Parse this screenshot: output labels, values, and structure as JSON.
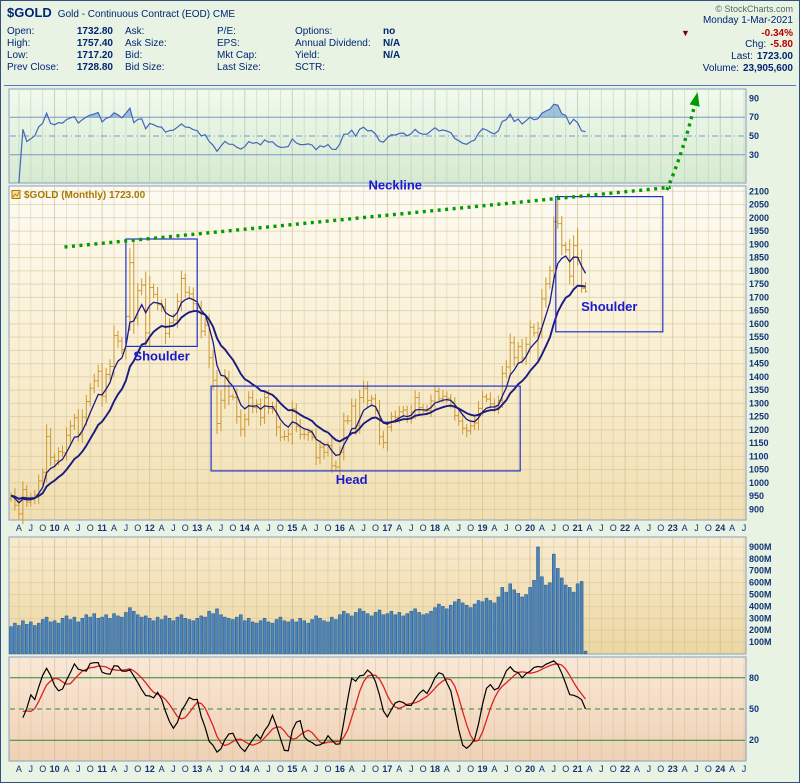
{
  "header": {
    "symbol": "$GOLD",
    "title": "Gold - Continuous Contract (EOD) CME",
    "copyright": "© StockCharts.com",
    "date": "Monday 1-Mar-2021",
    "change_dir": "▼",
    "change_pct": "-0.34%",
    "columns": [
      {
        "rows": [
          {
            "label": "Open:",
            "value": "1732.80"
          },
          {
            "label": "High:",
            "value": "1757.40"
          },
          {
            "label": "Low:",
            "value": "1717.20"
          },
          {
            "label": "Prev Close:",
            "value": "1728.80"
          }
        ]
      },
      {
        "rows": [
          {
            "label": "Ask:",
            "value": ""
          },
          {
            "label": "Ask Size:",
            "value": ""
          },
          {
            "label": "Bid:",
            "value": ""
          },
          {
            "label": "Bid Size:",
            "value": ""
          }
        ]
      },
      {
        "rows": [
          {
            "label": "P/E:",
            "value": ""
          },
          {
            "label": "EPS:",
            "value": ""
          },
          {
            "label": "Mkt Cap:",
            "value": ""
          },
          {
            "label": "Last Size:",
            "value": ""
          }
        ]
      },
      {
        "rows": [
          {
            "label": "Options:",
            "value": "no"
          },
          {
            "label": "Annual Dividend:",
            "value": "N/A"
          },
          {
            "label": "Yield:",
            "value": "N/A"
          },
          {
            "label": "SCTR:",
            "value": ""
          }
        ]
      }
    ],
    "right_rows": [
      {
        "label": "Chg:",
        "value": "-5.80",
        "color": "change"
      },
      {
        "label": "Last:",
        "value": "1723.00",
        "color": "normal"
      },
      {
        "label": "Volume:",
        "value": "23,905,600",
        "color": "normal"
      }
    ]
  },
  "colors": {
    "text_navy": "#113377",
    "change_red": "#bb0000",
    "price_bar": "#cc9933",
    "ma": "#1a1a80",
    "rsi_line": "#4466bb",
    "rsi_fill": "#5f97c8",
    "volume_fill": "#4d83b8",
    "volume_stroke": "#1f5a8c",
    "stoch_k": "#000000",
    "stoch_d": "#dd2222",
    "level_green": "#2e8b2e",
    "level_blue": "#7f96c8",
    "annotation_green": "#009b00",
    "annotation_blue": "#2233cc",
    "label_blue": "#1a1acc",
    "symbol_label_gold": "#aa7700"
  },
  "chart_data": {
    "type": "ohlc",
    "symbol_label": "$GOLD (Monthly) 1723.00",
    "timeframe": "monthly",
    "start_month": "2009-02",
    "last_data_month": "2021-03",
    "axis_end_month": "2024-07",
    "months_total": 186,
    "x_tick_labels": [
      "A",
      "J",
      "O",
      "10",
      "A",
      "J",
      "O",
      "11",
      "A",
      "J",
      "O",
      "12",
      "A",
      "J",
      "O",
      "13",
      "A",
      "J",
      "O",
      "14",
      "A",
      "J",
      "O",
      "15",
      "A",
      "J",
      "O",
      "16",
      "A",
      "J",
      "O",
      "17",
      "A",
      "J",
      "O",
      "18",
      "A",
      "J",
      "O",
      "19",
      "A",
      "J",
      "O",
      "20",
      "A",
      "J",
      "O",
      "21",
      "A",
      "J",
      "O",
      "22",
      "A",
      "J",
      "O",
      "23",
      "A",
      "J",
      "O",
      "24",
      "A",
      "J"
    ],
    "price_panel": {
      "ylim": [
        860,
        2120
      ],
      "scale_labels": [
        2100,
        2050,
        2000,
        1950,
        1900,
        1850,
        1800,
        1750,
        1700,
        1650,
        1600,
        1550,
        1500,
        1450,
        1400,
        1350,
        1300,
        1250,
        1200,
        1150,
        1100,
        1050,
        1000,
        950,
        900
      ],
      "closes": [
        952,
        916,
        883,
        975,
        927,
        939,
        953,
        1008,
        1040,
        1175,
        1096,
        1083,
        1118,
        1114,
        1180,
        1215,
        1245,
        1181,
        1248,
        1307,
        1357,
        1385,
        1421,
        1327,
        1409,
        1439,
        1556,
        1535,
        1502,
        1628,
        1831,
        1622,
        1725,
        1746,
        1566,
        1737,
        1711,
        1672,
        1664,
        1564,
        1604,
        1614,
        1685,
        1771,
        1719,
        1713,
        1676,
        1661,
        1572,
        1595,
        1472,
        1387,
        1224,
        1312,
        1396,
        1327,
        1323,
        1250,
        1202,
        1240,
        1321,
        1284,
        1296,
        1246,
        1322,
        1281,
        1287,
        1211,
        1173,
        1175,
        1184,
        1279,
        1213,
        1183,
        1182,
        1190,
        1172,
        1095,
        1135,
        1115,
        1141,
        1065,
        1060,
        1116,
        1234,
        1234,
        1290,
        1215,
        1322,
        1357,
        1311,
        1317,
        1273,
        1174,
        1152,
        1211,
        1251,
        1247,
        1268,
        1275,
        1242,
        1268,
        1322,
        1284,
        1271,
        1273,
        1309,
        1345,
        1318,
        1327,
        1319,
        1305,
        1254,
        1233,
        1206,
        1196,
        1215,
        1226,
        1281,
        1325,
        1316,
        1298,
        1286,
        1311,
        1413,
        1437,
        1529,
        1472,
        1514,
        1472,
        1523,
        1587,
        1566,
        1583,
        1694,
        1751,
        1800,
        1985,
        1978,
        1895,
        1879,
        1780,
        1895,
        1850,
        1734,
        1723
      ],
      "high_overrides": {
        "31": 1920,
        "137": 2005,
        "138": 2089,
        "143": 1962
      },
      "low_overrides": {
        "82": 1045,
        "133": 1451,
        "144": 1717,
        "145": 1717
      },
      "ma_fast_period": 6,
      "ma_slow_period": 16
    },
    "rsi_panel": {
      "period": 14,
      "scale_labels": [
        90,
        70,
        50,
        30
      ],
      "levels": {
        "solid": [
          70,
          30
        ],
        "dashed": [
          50
        ]
      }
    },
    "volume_panel": {
      "scale_labels": [
        "900M",
        "800M",
        "700M",
        "600M",
        "500M",
        "400M",
        "300M",
        "200M",
        "100M"
      ],
      "values_millions": [
        230,
        260,
        240,
        280,
        250,
        270,
        240,
        260,
        290,
        310,
        270,
        280,
        260,
        300,
        320,
        290,
        310,
        270,
        300,
        330,
        310,
        340,
        300,
        310,
        330,
        300,
        340,
        320,
        310,
        350,
        390,
        360,
        330,
        310,
        320,
        300,
        280,
        310,
        290,
        320,
        300,
        280,
        310,
        330,
        300,
        290,
        280,
        300,
        320,
        310,
        360,
        340,
        380,
        330,
        310,
        300,
        290,
        310,
        330,
        280,
        300,
        270,
        260,
        280,
        300,
        270,
        260,
        290,
        310,
        280,
        270,
        290,
        270,
        300,
        280,
        260,
        290,
        320,
        300,
        280,
        270,
        310,
        290,
        330,
        360,
        340,
        320,
        350,
        380,
        360,
        340,
        320,
        350,
        370,
        330,
        340,
        360,
        330,
        350,
        320,
        340,
        360,
        380,
        350,
        330,
        340,
        360,
        390,
        420,
        400,
        380,
        410,
        440,
        460,
        430,
        410,
        390,
        420,
        450,
        440,
        470,
        450,
        430,
        480,
        560,
        520,
        590,
        540,
        510,
        480,
        500,
        560,
        620,
        900,
        650,
        580,
        600,
        840,
        720,
        640,
        580,
        560,
        520,
        590,
        610,
        24
      ]
    },
    "stoch_panel": {
      "k_period": 14,
      "k_smooth": 3,
      "d_smooth": 5,
      "scale_labels": [
        80,
        50,
        20
      ],
      "levels": {
        "solid": [
          80,
          20
        ],
        "dashed": [
          50
        ]
      }
    },
    "annotations": {
      "neckline": {
        "from": {
          "m": 14,
          "p": 1890
        },
        "to": {
          "m": 167,
          "p": 2115
        }
      },
      "arrow": {
        "from": {
          "m": 166,
          "p": 2105
        },
        "ctrl": {
          "m": 170.5,
          "p": 2260
        },
        "tip": {
          "m": 173.5,
          "p": 2455
        }
      },
      "boxes": [
        {
          "name": "left-shoulder",
          "m0": 29.5,
          "m1": 47.5,
          "p0": 1515,
          "p1": 1920
        },
        {
          "name": "head",
          "m0": 51,
          "m1": 129,
          "p0": 1045,
          "p1": 1365
        },
        {
          "name": "right-shoulder",
          "m0": 138,
          "m1": 165,
          "p0": 1570,
          "p1": 2080
        }
      ],
      "labels": [
        {
          "text": "Neckline",
          "m": 97,
          "p": 2106
        },
        {
          "text": "Shoulder",
          "m": 38,
          "p": 1462
        },
        {
          "text": "Head",
          "m": 86,
          "p": 995
        },
        {
          "text": "Shoulder",
          "m": 151,
          "p": 1648
        }
      ]
    }
  }
}
